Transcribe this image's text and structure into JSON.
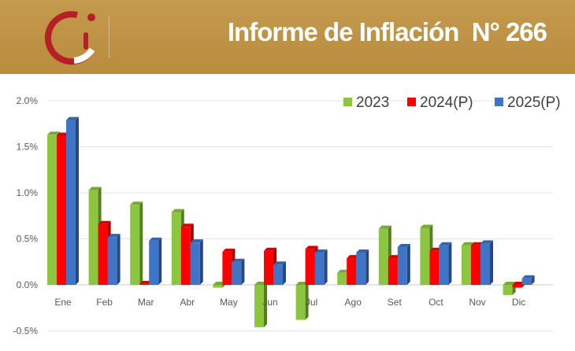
{
  "header": {
    "title": "Informe de Inflación  N° 266",
    "logo": "brand-logo-icon",
    "background": "#bd9146"
  },
  "chart_data": {
    "type": "bar",
    "categories": [
      "Ene",
      "Feb",
      "Mar",
      "Abr",
      "May",
      "Jun",
      "Jul",
      "Ago",
      "Set",
      "Oct",
      "Nov",
      "Dic"
    ],
    "series": [
      {
        "name": "2023",
        "color": "#8cc63e",
        "values": [
          1.63,
          1.03,
          0.87,
          0.79,
          -0.03,
          -0.46,
          -0.38,
          0.13,
          0.61,
          0.62,
          0.43,
          -0.11
        ]
      },
      {
        "name": "2024(P)",
        "color": "#ff0000",
        "values": [
          1.62,
          0.66,
          0.01,
          0.63,
          0.36,
          0.37,
          0.39,
          0.29,
          0.29,
          0.37,
          0.43,
          -0.03
        ]
      },
      {
        "name": "2025(P)",
        "color": "#3f74c7",
        "values": [
          1.79,
          0.52,
          0.48,
          0.46,
          0.25,
          0.22,
          0.35,
          0.35,
          0.41,
          0.43,
          0.45,
          0.07
        ]
      }
    ],
    "yticks": [
      "-0.5%",
      "0.0%",
      "0.5%",
      "1.0%",
      "1.5%",
      "2.0%"
    ],
    "ylim": [
      -0.5,
      2.0
    ],
    "grid": true,
    "legend": "top-right"
  }
}
